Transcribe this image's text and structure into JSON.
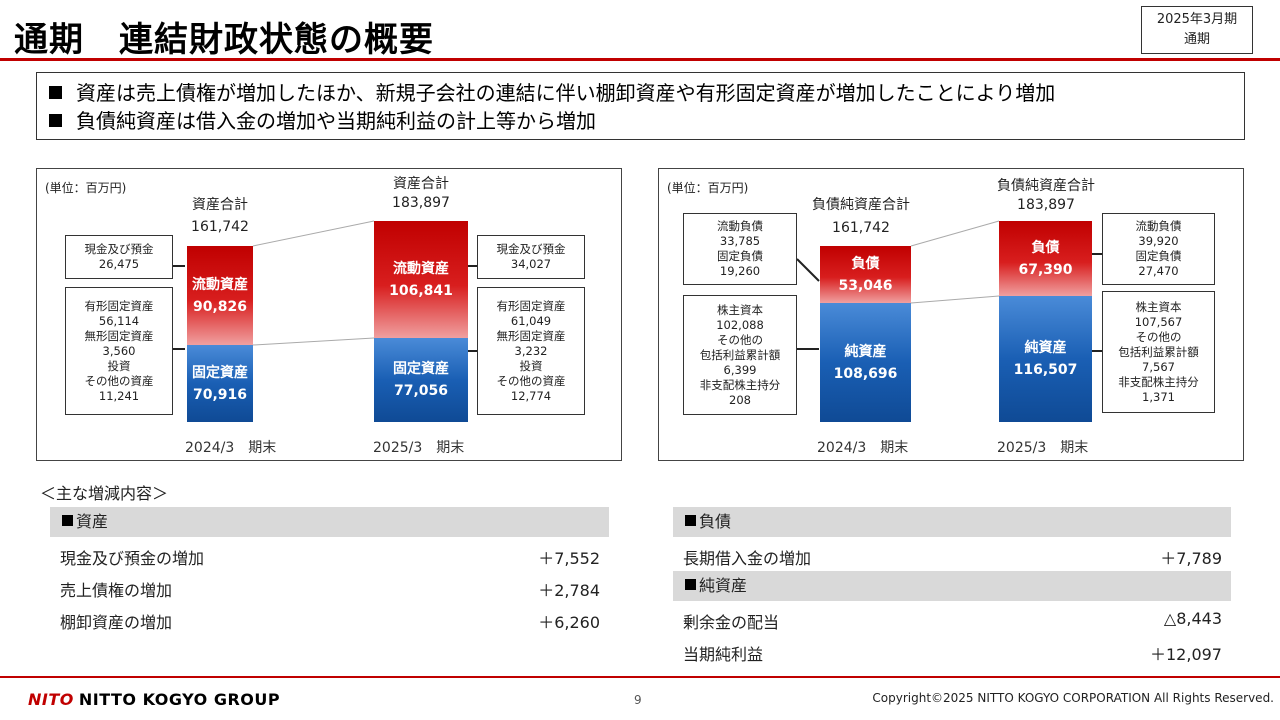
{
  "title": "通期　連結財政状態の概要",
  "period_box": {
    "line1": "2025年3月期",
    "line2": "通期"
  },
  "summary": [
    "資産は売上債権が増加したほか、新規子会社の連結に伴い棚卸資産や有形固定資産が増加したことにより増加",
    "負債純資産は借入金の増加や当期純利益の計上等から増加"
  ],
  "colors": {
    "accent_red": "#c00000",
    "current_red": "#d81e1e",
    "fixed_blue": "#1a5fb4",
    "section_gray": "#d9d9d9"
  },
  "assets_panel": {
    "unit": "(単位：百万円)",
    "periods": [
      {
        "xlabel": "2024/3　期末",
        "total_label": "資産合計",
        "total_value": "161,742",
        "top_label": "流動資産",
        "top_value": "90,826",
        "bottom_label": "固定資産",
        "bottom_value": "70,916",
        "top_note": [
          "現金及び預金",
          "26,475"
        ],
        "bottom_note": [
          "有形固定資産",
          "56,114",
          "無形固定資産",
          "3,560",
          "投資",
          "その他の資産",
          "11,241"
        ]
      },
      {
        "xlabel": "2025/3　期末",
        "total_label": "資産合計",
        "total_value": "183,897",
        "top_label": "流動資産",
        "top_value": "106,841",
        "bottom_label": "固定資産",
        "bottom_value": "77,056",
        "top_note": [
          "現金及び預金",
          "34,027"
        ],
        "bottom_note": [
          "有形固定資産",
          "61,049",
          "無形固定資産",
          "3,232",
          "投資",
          "その他の資産",
          "12,774"
        ]
      }
    ]
  },
  "liabilities_panel": {
    "unit": "(単位：百万円)",
    "periods": [
      {
        "xlabel": "2024/3　期末",
        "total_label": "負債純資産合計",
        "total_value": "161,742",
        "top_label": "負債",
        "top_value": "53,046",
        "bottom_label": "純資産",
        "bottom_value": "108,696",
        "top_note": [
          "流動負債",
          "33,785",
          "固定負債",
          "19,260"
        ],
        "bottom_note": [
          "株主資本",
          "102,088",
          "その他の",
          "包括利益累計額",
          "6,399",
          "非支配株主持分",
          "208"
        ]
      },
      {
        "xlabel": "2025/3　期末",
        "total_label": "負債純資産合計",
        "total_value": "183,897",
        "top_label": "負債",
        "top_value": "67,390",
        "bottom_label": "純資産",
        "bottom_value": "116,507",
        "top_note": [
          "流動負債",
          "39,920",
          "固定負債",
          "27,470"
        ],
        "bottom_note": [
          "株主資本",
          "107,567",
          "その他の",
          "包括利益累計額",
          "7,567",
          "非支配株主持分",
          "1,371"
        ]
      }
    ]
  },
  "changes": {
    "title": "＜主な増減内容＞",
    "assets": {
      "header": "資産",
      "rows": [
        {
          "label": "現金及び預金の増加",
          "value": "＋7,552"
        },
        {
          "label": "売上債権の増加",
          "value": "＋2,784"
        },
        {
          "label": "棚卸資産の増加",
          "value": "＋6,260"
        }
      ]
    },
    "liabilities": {
      "header": "負債",
      "rows": [
        {
          "label": "長期借入金の増加",
          "value": "＋7,789"
        }
      ]
    },
    "net_assets": {
      "header": "純資産",
      "rows": [
        {
          "label": "剰余金の配当",
          "value": "△8,443"
        },
        {
          "label": "当期純利益",
          "value": "＋12,097"
        }
      ]
    }
  },
  "footer": {
    "logo_mark": "NITO",
    "logo_text": "NITTO KOGYO GROUP",
    "page": "9",
    "copyright": "Copyright©2025 NITTO KOGYO CORPORATION All Rights Reserved."
  },
  "chart_data": [
    {
      "type": "bar",
      "stacked": true,
      "title": "",
      "unit": "(単位：百万円)",
      "categories": [
        "2024/3　期末",
        "2025/3　期末"
      ],
      "series": [
        {
          "name": "流動資産",
          "values": [
            90826,
            106841
          ]
        },
        {
          "name": "固定資産",
          "values": [
            70916,
            77056
          ]
        }
      ],
      "totals": {
        "label": "資産合計",
        "values": [
          161742,
          183897
        ]
      }
    },
    {
      "type": "bar",
      "stacked": true,
      "title": "",
      "unit": "(単位：百万円)",
      "categories": [
        "2024/3　期末",
        "2025/3　期末"
      ],
      "series": [
        {
          "name": "負債",
          "values": [
            53046,
            67390
          ]
        },
        {
          "name": "純資産",
          "values": [
            108696,
            116507
          ]
        }
      ],
      "totals": {
        "label": "負債純資産合計",
        "values": [
          161742,
          183897
        ]
      }
    }
  ]
}
